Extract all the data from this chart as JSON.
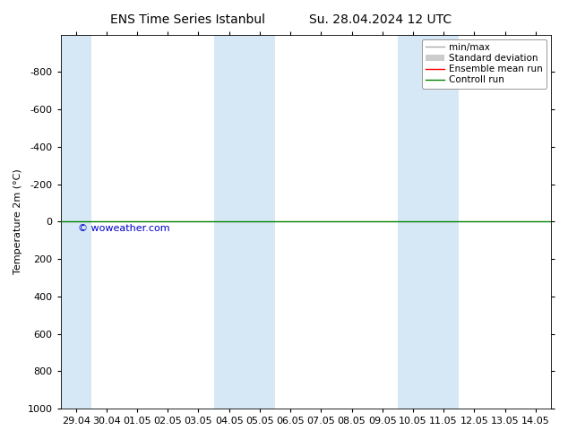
{
  "title_left": "ENS Time Series Istanbul",
  "title_right": "Su. 28.04.2024 12 UTC",
  "ylabel": "Temperature 2m (°C)",
  "ylim_top": -1000,
  "ylim_bottom": 1000,
  "yticks": [
    -800,
    -600,
    -400,
    -200,
    0,
    200,
    400,
    600,
    800,
    1000
  ],
  "xtick_labels": [
    "29.04",
    "30.04",
    "01.05",
    "02.05",
    "03.05",
    "04.05",
    "05.05",
    "06.05",
    "07.05",
    "08.05",
    "09.05",
    "10.05",
    "11.05",
    "12.05",
    "13.05",
    "14.05"
  ],
  "xtick_positions": [
    0,
    1,
    2,
    3,
    4,
    5,
    6,
    7,
    8,
    9,
    10,
    11,
    12,
    13,
    14,
    15
  ],
  "xlim_left": -0.5,
  "xlim_right": 15.5,
  "shaded_regions": [
    [
      -0.5,
      0.5
    ],
    [
      4.5,
      5.5
    ],
    [
      5.5,
      6.5
    ],
    [
      10.5,
      11.5
    ],
    [
      11.5,
      12.5
    ]
  ],
  "shaded_color": "#d6e8f5",
  "control_run_y": 0,
  "control_run_color": "#008000",
  "ensemble_mean_color": "#ff0000",
  "minmax_color": "#aaaaaa",
  "stddev_color": "#cccccc",
  "watermark": "© woweather.com",
  "watermark_color": "#0000cc",
  "background_color": "#ffffff",
  "title_fontsize": 10,
  "ylabel_fontsize": 8,
  "tick_fontsize": 8,
  "legend_fontsize": 7.5
}
